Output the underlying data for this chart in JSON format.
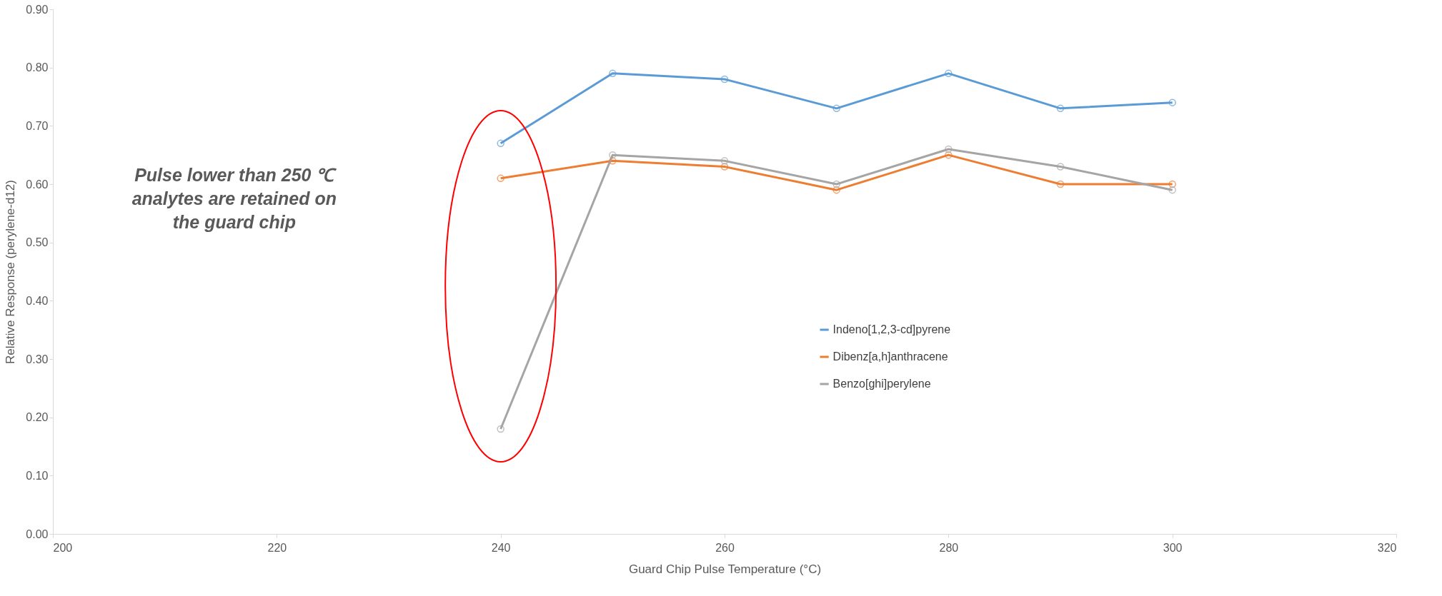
{
  "chart_data": {
    "type": "line",
    "xlabel": "Guard Chip Pulse Temperature (°C)",
    "ylabel": "Relative Response (perylene-d12)",
    "x": [
      240,
      250,
      260,
      270,
      280,
      290,
      300
    ],
    "series": [
      {
        "name": "Indeno[1,2,3-cd]pyrene",
        "color": "#5b9bd5",
        "values": [
          0.67,
          0.79,
          0.78,
          0.73,
          0.79,
          0.73,
          0.74
        ]
      },
      {
        "name": "Dibenz[a,h]anthracene",
        "color": "#ed7d31",
        "values": [
          0.61,
          0.64,
          0.63,
          0.59,
          0.65,
          0.6,
          0.6
        ]
      },
      {
        "name": "Benzo[ghi]perylene",
        "color": "#a5a5a5",
        "values": [
          0.18,
          0.65,
          0.64,
          0.6,
          0.66,
          0.63,
          0.59
        ]
      }
    ],
    "xlim": [
      200,
      320
    ],
    "xticks": [
      200,
      220,
      240,
      260,
      280,
      300,
      320
    ],
    "ylim": [
      0,
      0.9
    ],
    "yticks": [
      {
        "value": 0,
        "label": "0.00"
      },
      {
        "value": 0.1,
        "label": "0.10"
      },
      {
        "value": 0.2,
        "label": "0.20"
      },
      {
        "value": 0.3,
        "label": "0.30"
      },
      {
        "value": 0.4,
        "label": "0.40"
      },
      {
        "value": 0.5,
        "label": "0.50"
      },
      {
        "value": 0.6,
        "label": "0.60"
      },
      {
        "value": 0.7,
        "label": "0.70"
      },
      {
        "value": 0.8,
        "label": "0.80"
      },
      {
        "value": 0.9,
        "label": "0.90"
      }
    ],
    "marker": "circle",
    "line_style": "solid",
    "grid": false,
    "legend": "right",
    "annotations": [
      "Pulse lower than 250 ℃\nanalytes are retained on\nthe guard chip"
    ]
  }
}
